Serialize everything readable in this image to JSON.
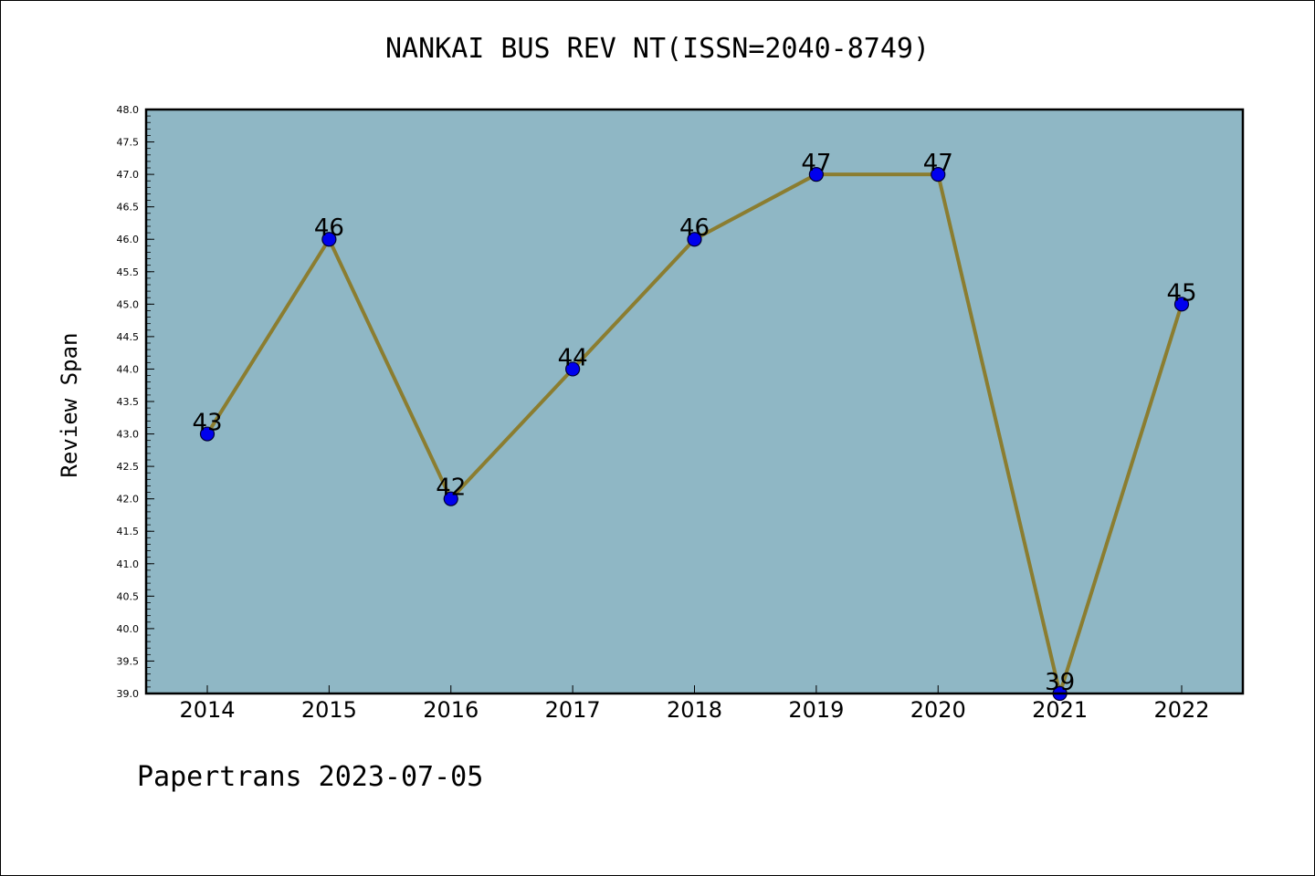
{
  "chart_data": {
    "type": "line",
    "title": "NANKAI BUS REV NT(ISSN=2040-8749)",
    "xlabel": "",
    "ylabel": "Review Span",
    "x": [
      "2014",
      "2015",
      "2016",
      "2017",
      "2018",
      "2019",
      "2020",
      "2021",
      "2022"
    ],
    "series": [
      {
        "values": [
          43,
          46,
          42,
          44,
          46,
          47,
          47,
          39,
          45
        ],
        "data_labels": [
          "43",
          "46",
          "42",
          "44",
          "46",
          "47",
          "47",
          "39",
          "45"
        ]
      }
    ],
    "ylim": [
      39.0,
      48.0
    ],
    "y_ticks": [
      "39.0",
      "39.5",
      "40.0",
      "40.5",
      "41.0",
      "41.5",
      "42.0",
      "42.5",
      "43.0",
      "43.5",
      "44.0",
      "44.5",
      "45.0",
      "45.5",
      "46.0",
      "46.5",
      "47.0",
      "47.5",
      "48.0"
    ],
    "grid": false,
    "legend": "none",
    "colors": {
      "plot_background": "#8fb7c5",
      "line": "#8b7d30",
      "marker": "#0000ee",
      "marker_edge": "#000033"
    }
  },
  "footer": "Papertrans 2023-07-05"
}
